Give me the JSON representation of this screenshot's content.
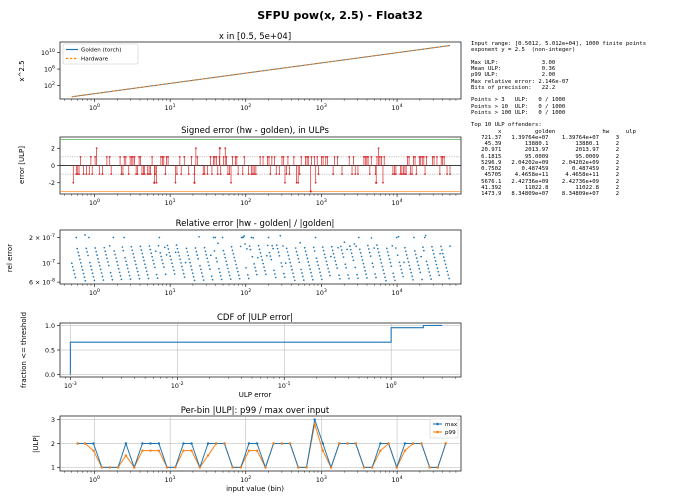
{
  "figure_title": "SFPU pow(x, 2.5) - Float32",
  "stats_text": [
    "Input range: [0.5012, 5.012e+04], 1000 finite points",
    "exponent y = 2.5  (non-integer)",
    "",
    "Max ULP:             3.00",
    "Mean ULP:            0.36",
    "p99 ULP:             2.00",
    "Max relative error: 2.146e-07",
    "Bits of precision:   22.2",
    "",
    "Points > 3   ULP:   0 / 1000",
    "Points > 10  ULP:   0 / 1000",
    "Points > 100 ULP:   0 / 1000",
    "",
    "Top 10 ULP offenders:",
    "        x          golden              hw     ulp",
    "   721.37   1.39764e+07    1.39764e+07     3",
    "    45.39       13880.1        13880.1     2",
    "   20.971       2013.97        2013.97     2",
    "   6.1815       95.0009        95.0009     2",
    "   5296.9   2.04202e+09    2.04202e+09     2",
    "   0.7502      0.487459       0.487459     2",
    "    45705    4.4658e+11     4.4658e+11     2",
    "   5676.1   2.42736e+09    2.42736e+09     2",
    "   41.392       11022.8        11022.8     2",
    "   1473.9   8.34809e+07    8.34809e+07     2"
  ],
  "chart_data": [
    {
      "type": "line",
      "title": "x in [0.5, 5e+04]",
      "xlabel": "",
      "ylabel": "x^2.5",
      "xscale": "log",
      "yscale": "log",
      "xlim": [
        0.35,
        70000
      ],
      "ylim": [
        0.05,
        4000000000000.0
      ],
      "xticks": [
        "10^0",
        "10^1",
        "10^2",
        "10^3",
        "10^4"
      ],
      "yticks": [
        "10^2",
        "10^6",
        "10^10"
      ],
      "legend": "top-left",
      "series": [
        {
          "name": "Golden (torch)",
          "color": "#1f77b4",
          "style": "solid",
          "x": [
            0.5012,
            50120
          ],
          "y": [
            0.178,
            562000000000.0
          ]
        },
        {
          "name": "Hardware",
          "color": "#ff7f0e",
          "style": "dashed",
          "x": [
            0.5012,
            50120
          ],
          "y": [
            0.178,
            562000000000.0
          ]
        }
      ]
    },
    {
      "type": "scatter",
      "title": "Signed error (hw - golden), in ULPs",
      "xlabel": "",
      "ylabel": "error [ULP]",
      "xscale": "log",
      "xlim": [
        0.35,
        70000
      ],
      "ylim": [
        -3.3,
        3.3
      ],
      "xticks": [
        "10^0",
        "10^1",
        "10^2",
        "10^3",
        "10^4"
      ],
      "yticks": [
        "-2",
        "0",
        "2"
      ],
      "color": "#d62728",
      "reference_lines": [
        {
          "y": 3,
          "color": "#2ca02c"
        },
        {
          "y": -3,
          "color": "#ff7f0e"
        },
        {
          "y": 1,
          "color": "#888888"
        },
        {
          "y": -1,
          "color": "#888888"
        },
        {
          "y": 0,
          "color": "#000000"
        }
      ],
      "n_points": 1000,
      "allowed_values": [
        -3,
        -2,
        -1,
        0,
        1,
        2,
        3
      ],
      "extreme_points": [
        {
          "x": 721.37,
          "y": -3
        },
        {
          "x": 45.39,
          "y": 2
        },
        {
          "x": 20.971,
          "y": -2
        },
        {
          "x": 6.1815,
          "y": -2
        },
        {
          "x": 5296.9,
          "y": -2
        }
      ]
    },
    {
      "type": "scatter",
      "title": "Relative error |hw - golden| / |golden|",
      "xlabel": "",
      "ylabel": "rel error",
      "xscale": "log",
      "yscale": "log",
      "xlim": [
        0.35,
        70000
      ],
      "ylim": [
        5.7e-08,
        2.45e-07
      ],
      "xticks": [
        "10^0",
        "10^1",
        "10^2",
        "10^3",
        "10^4"
      ],
      "yticks": [
        "6 × 10^-8",
        "10^-7",
        "2 × 10^-7"
      ],
      "color": "#1f77b4",
      "max_rel_error": 2.146e-07
    },
    {
      "type": "line",
      "title": "CDF of |ULP error|",
      "xlabel": "ULP error",
      "ylabel": "fraction <= threshold",
      "xscale": "log",
      "xlim": [
        0.0008,
        4.5
      ],
      "ylim": [
        -0.05,
        1.05
      ],
      "xticks": [
        "10^-3",
        "10^-2",
        "10^-1",
        "10^0"
      ],
      "yticks": [
        "0.0",
        "0.5",
        "1.0"
      ],
      "grid": true,
      "color": "#1f77b4",
      "x": [
        0.001,
        0.001,
        1,
        1,
        2,
        2,
        3
      ],
      "y": [
        0,
        0.66,
        0.66,
        0.955,
        0.955,
        0.999,
        1.0
      ]
    },
    {
      "type": "line",
      "title": "Per-bin |ULP|: p99 / max over input",
      "xlabel": "input value (bin)",
      "ylabel": "|ULP|",
      "xscale": "log",
      "xlim": [
        0.35,
        70000
      ],
      "ylim": [
        0.85,
        3.15
      ],
      "xticks": [
        "10^0",
        "10^1",
        "10^2",
        "10^3",
        "10^4"
      ],
      "yticks": [
        "1",
        "2",
        "3"
      ],
      "grid": true,
      "legend": "top-right",
      "x": [
        0.6,
        0.75,
        0.97,
        1.25,
        1.6,
        2.05,
        2.6,
        3.35,
        4.3,
        5.5,
        7.1,
        9.1,
        11.7,
        15.0,
        19.2,
        24.7,
        31.7,
        40.7,
        52.2,
        67,
        86,
        110,
        141,
        182,
        233,
        300,
        385,
        494,
        635,
        815,
        1045,
        1340,
        1720,
        2210,
        2840,
        3650,
        4680,
        6010,
        7720,
        9910,
        12700,
        16300,
        21000,
        27000,
        34600,
        44000
      ],
      "series": [
        {
          "name": "max",
          "color": "#1f77b4",
          "values": [
            2,
            2,
            2,
            1,
            1,
            1,
            2,
            1,
            2,
            2,
            2,
            1,
            1,
            2,
            2,
            1,
            2,
            2,
            2,
            1,
            1,
            2,
            2,
            1,
            2,
            2,
            2,
            1,
            1,
            3,
            2,
            1,
            2,
            2,
            2,
            1,
            1,
            2,
            2,
            1,
            2,
            2,
            2,
            1,
            1,
            2
          ]
        },
        {
          "name": "p99",
          "color": "#ff7f0e",
          "values": [
            2,
            2,
            1.7,
            1,
            1,
            1,
            1.5,
            1,
            1.7,
            1.7,
            1.7,
            1,
            1,
            1.7,
            1.7,
            1,
            1.5,
            2,
            2,
            1,
            1,
            1.7,
            1.7,
            1,
            2,
            2,
            2,
            1,
            1,
            2.8,
            1.7,
            1,
            2,
            2,
            2,
            1,
            1,
            1.7,
            2,
            1,
            1.7,
            2,
            2,
            1,
            1,
            2
          ]
        }
      ]
    }
  ]
}
